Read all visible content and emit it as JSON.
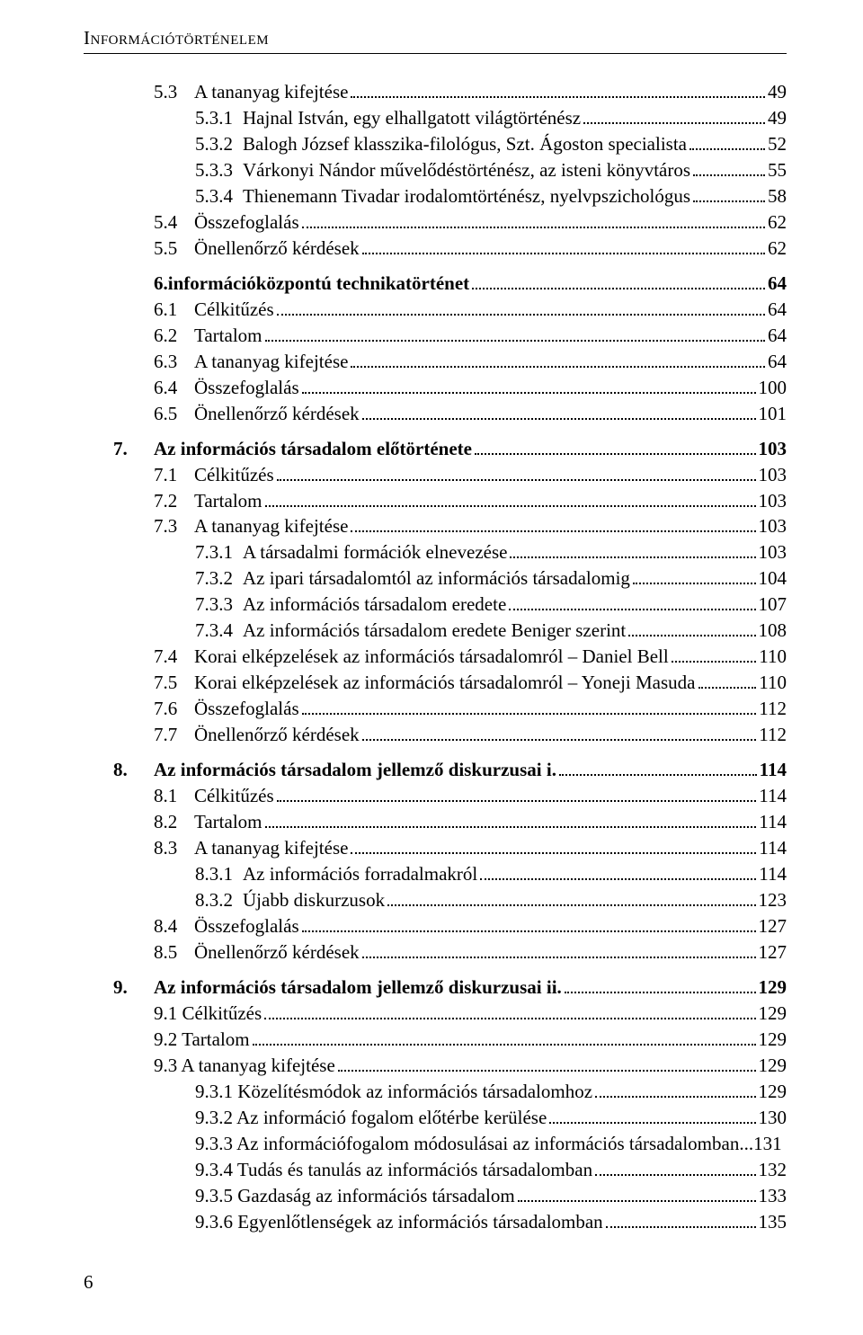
{
  "header": "Információtörténelem",
  "page_number": "6",
  "entries": [
    {
      "cls": "indent-2",
      "num": "5.3",
      "numw": "w-45",
      "title": "A tananyag kifejtése",
      "page": "49"
    },
    {
      "cls": "indent-3",
      "num": "5.3.1",
      "numw": "w-53",
      "title": "Hajnal István, egy elhallgatott világtörténész",
      "page": "49"
    },
    {
      "cls": "indent-3",
      "num": "5.3.2",
      "numw": "w-53",
      "title": "Balogh József klasszika-filológus, Szt. Ágoston specialista",
      "page": "52"
    },
    {
      "cls": "indent-3",
      "num": "5.3.3",
      "numw": "w-53",
      "title": "Várkonyi Nándor művelődéstörténész, az isteni könyvtáros",
      "page": "55"
    },
    {
      "cls": "indent-3",
      "num": "5.3.4",
      "numw": "w-53",
      "title": "Thienemann Tivadar irodalomtörténész, nyelvpszichológus",
      "page": "58"
    },
    {
      "cls": "indent-2",
      "num": "5.4",
      "numw": "w-45",
      "title": "Összefoglalás",
      "page": "62"
    },
    {
      "cls": "indent-2",
      "num": "5.5",
      "numw": "w-45",
      "title": "Önellenőrző kérdések",
      "page": "62"
    },
    {
      "gap": true
    },
    {
      "cls": "indent-1 bold",
      "num": "6.",
      "numw": "",
      "noNumWidth": true,
      "title": "információközpontú technikatörténet",
      "page": "64",
      "space_after_num": " "
    },
    {
      "cls": "indent-2",
      "num": "6.1",
      "numw": "w-45",
      "title": "Célkitűzés",
      "page": "64"
    },
    {
      "cls": "indent-2",
      "num": "6.2",
      "numw": "w-45",
      "title": "Tartalom",
      "page": "64"
    },
    {
      "cls": "indent-2",
      "num": "6.3",
      "numw": "w-45",
      "title": "A tananyag kifejtése",
      "page": "64"
    },
    {
      "cls": "indent-2",
      "num": "6.4",
      "numw": "w-45",
      "title": "Összefoglalás",
      "page": "100"
    },
    {
      "cls": "indent-2",
      "num": "6.5",
      "numw": "w-45",
      "title": "Önellenőrző kérdések",
      "page": "101"
    },
    {
      "gap": true
    },
    {
      "cls": "indent-0 bold",
      "num": "7.",
      "numw": "w-45",
      "title": "Az információs társadalom előtörténete",
      "page": "103"
    },
    {
      "cls": "indent-2",
      "num": "7.1",
      "numw": "w-45",
      "title": "Célkitűzés",
      "page": "103"
    },
    {
      "cls": "indent-2",
      "num": "7.2",
      "numw": "w-45",
      "title": "Tartalom",
      "page": "103"
    },
    {
      "cls": "indent-2",
      "num": "7.3",
      "numw": "w-45",
      "title": "A tananyag kifejtése",
      "page": "103"
    },
    {
      "cls": "indent-3",
      "num": "7.3.1",
      "numw": "w-53",
      "title": "A társadalmi formációk elnevezése",
      "page": "103"
    },
    {
      "cls": "indent-3",
      "num": "7.3.2",
      "numw": "w-53",
      "title": "Az ipari társadalomtól az információs társadalomig",
      "page": "104"
    },
    {
      "cls": "indent-3",
      "num": "7.3.3",
      "numw": "w-53",
      "title": "Az információs társadalom eredete",
      "page": "107"
    },
    {
      "cls": "indent-3",
      "num": "7.3.4",
      "numw": "w-53",
      "title": "Az információs társadalom eredete Beniger szerint",
      "page": "108"
    },
    {
      "cls": "indent-2",
      "num": "7.4",
      "numw": "w-45",
      "title": "Korai elképzelések az információs társadalomról – Daniel Bell",
      "page": "110"
    },
    {
      "cls": "indent-2",
      "num": "7.5",
      "numw": "w-45",
      "title": "Korai elképzelések az információs társadalomról – Yoneji Masuda",
      "page": "110"
    },
    {
      "cls": "indent-2",
      "num": "7.6",
      "numw": "w-45",
      "title": "Összefoglalás",
      "page": "112"
    },
    {
      "cls": "indent-2",
      "num": "7.7",
      "numw": "w-45",
      "title": "Önellenőrző kérdések",
      "page": "112"
    },
    {
      "gap": true
    },
    {
      "cls": "indent-0 bold",
      "num": "8.",
      "numw": "w-45",
      "title": "Az információs társadalom jellemző diskurzusai i.",
      "page": "114"
    },
    {
      "cls": "indent-2",
      "num": "8.1",
      "numw": "w-45",
      "title": "Célkitűzés",
      "page": "114"
    },
    {
      "cls": "indent-2",
      "num": "8.2",
      "numw": "w-45",
      "title": "Tartalom",
      "page": "114"
    },
    {
      "cls": "indent-2",
      "num": "8.3",
      "numw": "w-45",
      "title": "A tananyag kifejtése",
      "page": "114"
    },
    {
      "cls": "indent-3",
      "num": "8.3.1",
      "numw": "w-53",
      "title": "Az információs forradalmakról",
      "page": "114"
    },
    {
      "cls": "indent-3",
      "num": "8.3.2",
      "numw": "w-53",
      "title": "Újabb diskurzusok",
      "page": "123"
    },
    {
      "cls": "indent-2",
      "num": "8.4",
      "numw": "w-45",
      "title": "Összefoglalás",
      "page": "127"
    },
    {
      "cls": "indent-2",
      "num": "8.5",
      "numw": "w-45",
      "title": "Önellenőrző kérdések",
      "page": "127"
    },
    {
      "gap": true
    },
    {
      "cls": "indent-0 bold",
      "num": "9.",
      "numw": "w-45",
      "title": "Az információs társadalom jellemző diskurzusai ii.",
      "page": "129"
    },
    {
      "cls": "indent-2",
      "num": "9.1 Célkitűzés",
      "numw": "",
      "noNumWidth": true,
      "title": "",
      "page": "129",
      "merged": true
    },
    {
      "cls": "indent-2",
      "num": "9.2 Tartalom",
      "numw": "",
      "noNumWidth": true,
      "title": "",
      "page": "129",
      "merged": true
    },
    {
      "cls": "indent-2",
      "num": "9.3 A tananyag kifejtése",
      "numw": "",
      "noNumWidth": true,
      "title": "",
      "page": "129",
      "merged": true
    },
    {
      "cls": "indent-3",
      "num": "9.3.1 Közelítésmódok az információs társadalomhoz",
      "numw": "",
      "noNumWidth": true,
      "title": "",
      "page": "129",
      "merged": true
    },
    {
      "cls": "indent-3",
      "num": "9.3.2 Az információ fogalom előtérbe kerülése",
      "numw": "",
      "noNumWidth": true,
      "title": "",
      "page": "130",
      "merged": true
    },
    {
      "cls": "indent-3",
      "num": "9.3.3 Az információfogalom módosulásai az információs társadalomban.",
      "numw": "",
      "noNumWidth": true,
      "title": "",
      "page": "131",
      "merged": true,
      "noLeader": true,
      "prePageSpace": " .."
    },
    {
      "cls": "indent-3",
      "num": "9.3.4 Tudás és tanulás az információs társadalomban",
      "numw": "",
      "noNumWidth": true,
      "title": "",
      "page": "132",
      "merged": true
    },
    {
      "cls": "indent-3",
      "num": "9.3.5 Gazdaság az információs társadalom",
      "numw": "",
      "noNumWidth": true,
      "title": "",
      "page": "133",
      "merged": true
    },
    {
      "cls": "indent-3",
      "num": "9.3.6 Egyenlőtlenségek az információs társadalomban",
      "numw": "",
      "noNumWidth": true,
      "title": "",
      "page": "135",
      "merged": true
    }
  ]
}
